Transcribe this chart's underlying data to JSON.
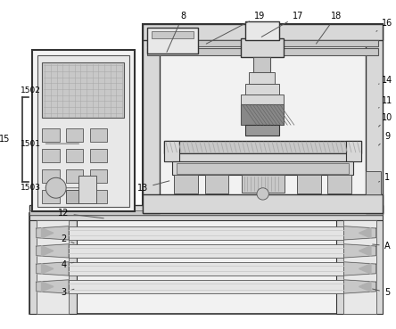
{
  "bg_color": "#ffffff",
  "lc": "#555555",
  "lc2": "#333333",
  "gray1": "#e8e8e8",
  "gray2": "#d8d8d8",
  "gray3": "#c8c8c8",
  "gray4": "#b0b0b0",
  "gray5": "#f2f2f2",
  "figw": 4.44,
  "figh": 3.69,
  "dpi": 100
}
